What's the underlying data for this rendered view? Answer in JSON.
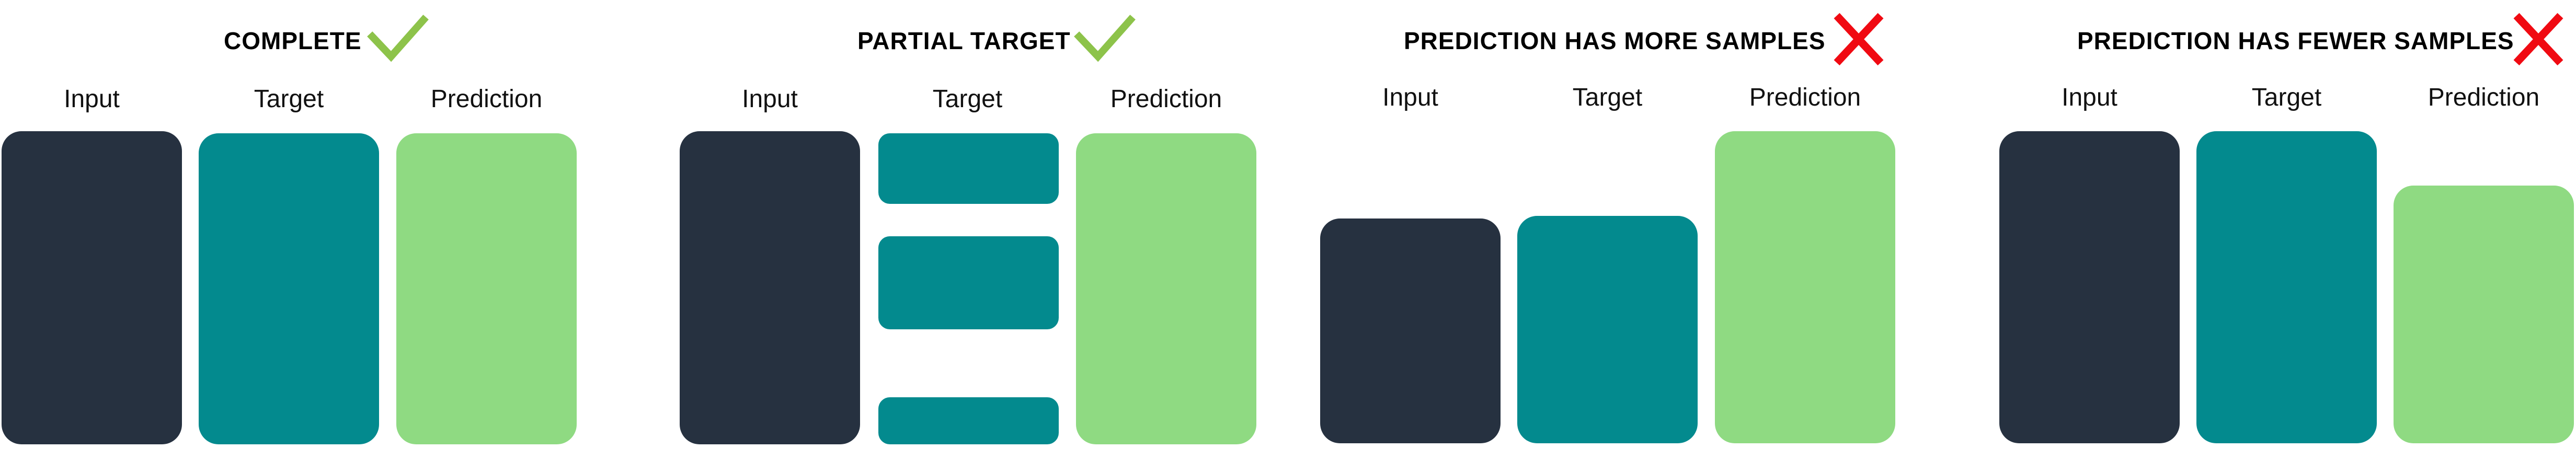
{
  "colors": {
    "input": "#263140",
    "target": "#038A8E",
    "prediction": "#8FDA82",
    "check": "#8DC34A",
    "cross": "#F00A12"
  },
  "panels": [
    {
      "title": "COMPLETE",
      "status": "check-icon",
      "labels": {
        "input": "Input",
        "target": "Target",
        "prediction": "Prediction"
      }
    },
    {
      "title": "PARTIAL TARGET",
      "status": "check-icon",
      "labels": {
        "input": "Input",
        "target": "Target",
        "prediction": "Prediction"
      }
    },
    {
      "title": "PREDICTION HAS MORE SAMPLES",
      "status": "x-mark-icon",
      "labels": {
        "input": "Input",
        "target": "Target",
        "prediction": "Prediction"
      }
    },
    {
      "title": "PREDICTION HAS FEWER SAMPLES",
      "status": "x-mark-icon",
      "labels": {
        "input": "Input",
        "target": "Target",
        "prediction": "Prediction"
      }
    }
  ]
}
